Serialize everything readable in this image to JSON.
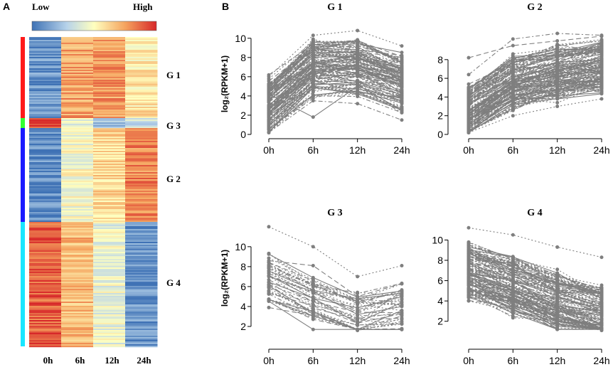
{
  "panels": {
    "a": "A",
    "b": "B"
  },
  "legend": {
    "low": "Low",
    "high": "High"
  },
  "heatmap": {
    "columns": [
      "0h",
      "6h",
      "12h",
      "24h"
    ],
    "groups": [
      {
        "label": "G 1",
        "color": "#ff1a1a",
        "profile": [
          0.1,
          0.74,
          0.76,
          0.56
        ]
      },
      {
        "label": "G 3",
        "color": "#33ff33",
        "profile": [
          0.95,
          0.4,
          0.22,
          0.33
        ]
      },
      {
        "label": "G 2",
        "color": "#1a1aff",
        "profile": [
          0.08,
          0.48,
          0.6,
          0.8
        ]
      },
      {
        "label": "G 4",
        "color": "#19e6ff",
        "profile": [
          0.9,
          0.68,
          0.44,
          0.1
        ]
      }
    ]
  },
  "y_axis_label": "log₂(RPKM+1)",
  "chart_data": [
    {
      "type": "line",
      "title": "G 1",
      "categories": [
        "0h",
        "6h",
        "12h",
        "24h"
      ],
      "ylim": [
        0,
        10.5
      ],
      "yticks": [
        0,
        2,
        4,
        6,
        8,
        10
      ],
      "ylabel": "log2(RPKM+1)",
      "n_lines": 130,
      "lines": [
        [
          0.5,
          5.8,
          6.2,
          4.5
        ],
        [
          2.0,
          6.5,
          6.8,
          5.2
        ],
        [
          4.2,
          1.8,
          5.0,
          3.5
        ],
        [
          6.0,
          10.3,
          10.8,
          9.2
        ],
        [
          0.2,
          3.5,
          3.2,
          1.5
        ]
      ]
    },
    {
      "type": "line",
      "title": "G 2",
      "categories": [
        "0h",
        "6h",
        "12h",
        "24h"
      ],
      "ylim": [
        0,
        10.8
      ],
      "yticks": [
        0,
        2,
        4,
        6,
        8
      ],
      "ylabel": "",
      "n_lines": 150,
      "lines": [
        [
          0.5,
          4.5,
          5.5,
          6.5
        ],
        [
          8.2,
          9.5,
          10.0,
          10.5
        ],
        [
          2.5,
          5.5,
          6.8,
          8.0
        ],
        [
          0.2,
          2.0,
          3.0,
          3.8
        ],
        [
          6.4,
          10.2,
          10.8,
          10.6
        ]
      ]
    },
    {
      "type": "line",
      "title": "G 3",
      "categories": [
        "0h",
        "6h",
        "12h",
        "24h"
      ],
      "ylim": [
        1.5,
        12.2
      ],
      "yticks": [
        2,
        4,
        6,
        8,
        10
      ],
      "ylabel": "log2(RPKM+1)",
      "n_lines": 40,
      "lines": [
        [
          12.0,
          10.0,
          7.0,
          8.1
        ],
        [
          8.6,
          8.1,
          5.0,
          6.3
        ],
        [
          7.0,
          5.5,
          3.2,
          4.0
        ],
        [
          5.5,
          3.5,
          1.6,
          2.5
        ],
        [
          6.2,
          4.5,
          2.5,
          5.5
        ]
      ]
    },
    {
      "type": "line",
      "title": "G 4",
      "categories": [
        "0h",
        "6h",
        "12h",
        "24h"
      ],
      "ylim": [
        1.0,
        11.5
      ],
      "yticks": [
        2,
        4,
        6,
        8,
        10
      ],
      "ylabel": "",
      "n_lines": 140,
      "lines": [
        [
          11.2,
          10.5,
          9.3,
          8.3
        ],
        [
          8.0,
          6.0,
          4.5,
          3.0
        ],
        [
          6.0,
          4.0,
          2.5,
          1.2
        ],
        [
          4.0,
          3.0,
          2.0,
          1.1
        ],
        [
          9.5,
          8.0,
          6.5,
          5.0
        ]
      ]
    }
  ]
}
